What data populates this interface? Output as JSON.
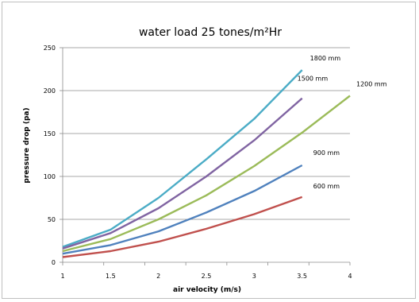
{
  "chart_data": {
    "type": "line",
    "title": "water load 25 tones/m²Hr",
    "xlabel": "air velocity (m/s)",
    "ylabel": "pressure drop (pa)",
    "x_ticks": [
      "1",
      "1.5",
      "2",
      "2.5",
      "3",
      "3.5",
      "4"
    ],
    "y_ticks": [
      "0",
      "50",
      "100",
      "150",
      "200",
      "250"
    ],
    "xlim": [
      1,
      4
    ],
    "ylim": [
      0,
      250
    ],
    "grid": "horizontal",
    "legend": "none",
    "series": [
      {
        "name": "1800 mm",
        "color": "#4bacc6",
        "x": [
          1,
          1.5,
          2,
          2.5,
          3,
          3.5
        ],
        "y": [
          18,
          38,
          75,
          120,
          167,
          224
        ]
      },
      {
        "name": "1500 mm",
        "color": "#8064a2",
        "x": [
          1,
          1.5,
          2,
          2.5,
          3,
          3.5
        ],
        "y": [
          16,
          34,
          63,
          100,
          142,
          191
        ]
      },
      {
        "name": "1200 mm",
        "color": "#9bbb59",
        "x": [
          1,
          1.5,
          2,
          2.5,
          3,
          3.5,
          4
        ],
        "y": [
          13,
          27,
          50,
          78,
          112,
          151,
          194
        ]
      },
      {
        "name": "900 mm",
        "color": "#4f81bd",
        "x": [
          1,
          1.5,
          2,
          2.5,
          3,
          3.5
        ],
        "y": [
          10,
          20,
          36,
          58,
          83,
          113
        ]
      },
      {
        "name": "600 mm",
        "color": "#c0504d",
        "x": [
          1,
          1.5,
          2,
          2.5,
          3,
          3.5
        ],
        "y": [
          6,
          13,
          24,
          39,
          56,
          76
        ]
      }
    ]
  }
}
